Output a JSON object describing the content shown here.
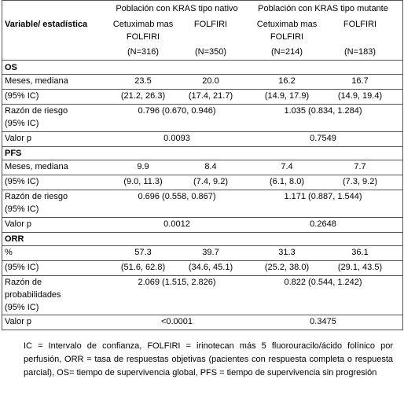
{
  "table": {
    "group_headers": [
      "Población con KRAS tipo nativo",
      "Población con KRAS tipo mutante"
    ],
    "columns": [
      "Variable/ estadística",
      "Cetuximab mas FOLFIRI",
      "FOLFIRI",
      "Cetuximab mas FOLFIRI",
      "FOLFIRI"
    ],
    "n": [
      "(N=316)",
      "(N=350)",
      "(N=214)",
      "(N=183)"
    ],
    "sections": [
      {
        "title": "OS",
        "rows": [
          {
            "label": "Meses, mediana",
            "cells": [
              "23.5",
              "20.0",
              "16.2",
              "16.7"
            ]
          },
          {
            "label": "(95% IC)",
            "cells": [
              "(21.2, 26.3)",
              "(17.4, 21.7)",
              "(14.9, 17.9)",
              "(14.9, 19.4)"
            ]
          },
          {
            "label": "Razón de riesgo (95% IC)",
            "cells": [
              "0.796 (0.670, 0.946)",
              "1.035 (0.834, 1.284)"
            ]
          },
          {
            "label": "Valor p",
            "cells": [
              "0.0093",
              "0.7549"
            ]
          }
        ]
      },
      {
        "title": "PFS",
        "rows": [
          {
            "label": "Meses, mediana",
            "cells": [
              "9.9",
              "8.4",
              "7.4",
              "7.7"
            ]
          },
          {
            "label": "(95% IC)",
            "cells": [
              "(9.0, 11.3)",
              "(7.4, 9.2)",
              "(6.1, 8.0)",
              "(7.3, 9.2)"
            ]
          },
          {
            "label": "Razón de riesgo (95% IC)",
            "cells": [
              "0.696 (0.558, 0.867)",
              "1.171 (0.887, 1.544)"
            ]
          },
          {
            "label": "Valor p",
            "cells": [
              "0.0012",
              "0.2648"
            ]
          }
        ]
      },
      {
        "title": "ORR",
        "rows": [
          {
            "label": "%",
            "cells": [
              "57.3",
              "39.7",
              "31.3",
              "36.1"
            ]
          },
          {
            "label": "(95% IC)",
            "cells": [
              "(51.6, 62.8)",
              "(34.6, 45.1)",
              "(25.2, 38.0)",
              "(29.1, 43.5)"
            ]
          },
          {
            "label": "Razón de probabilidades (95% IC)",
            "cells": [
              "2.069 (1.515, 2.826)",
              "0.822 (0.544, 1.242)"
            ]
          },
          {
            "label": "Valor p",
            "cells": [
              "<0.0001",
              "0.3475"
            ]
          }
        ]
      }
    ]
  },
  "footnote": "IC = Intervalo de confianza, FOLFIRI = irinotecan más  5 fluorouracilo/ácido folínico por perfusión, ORR = tasa de respuestas objetivas (pacientes con respuesta completa o respuesta parcial), OS= tiempo de supervivencia global, PFS = tiempo de supervivencia sin  progresión"
}
